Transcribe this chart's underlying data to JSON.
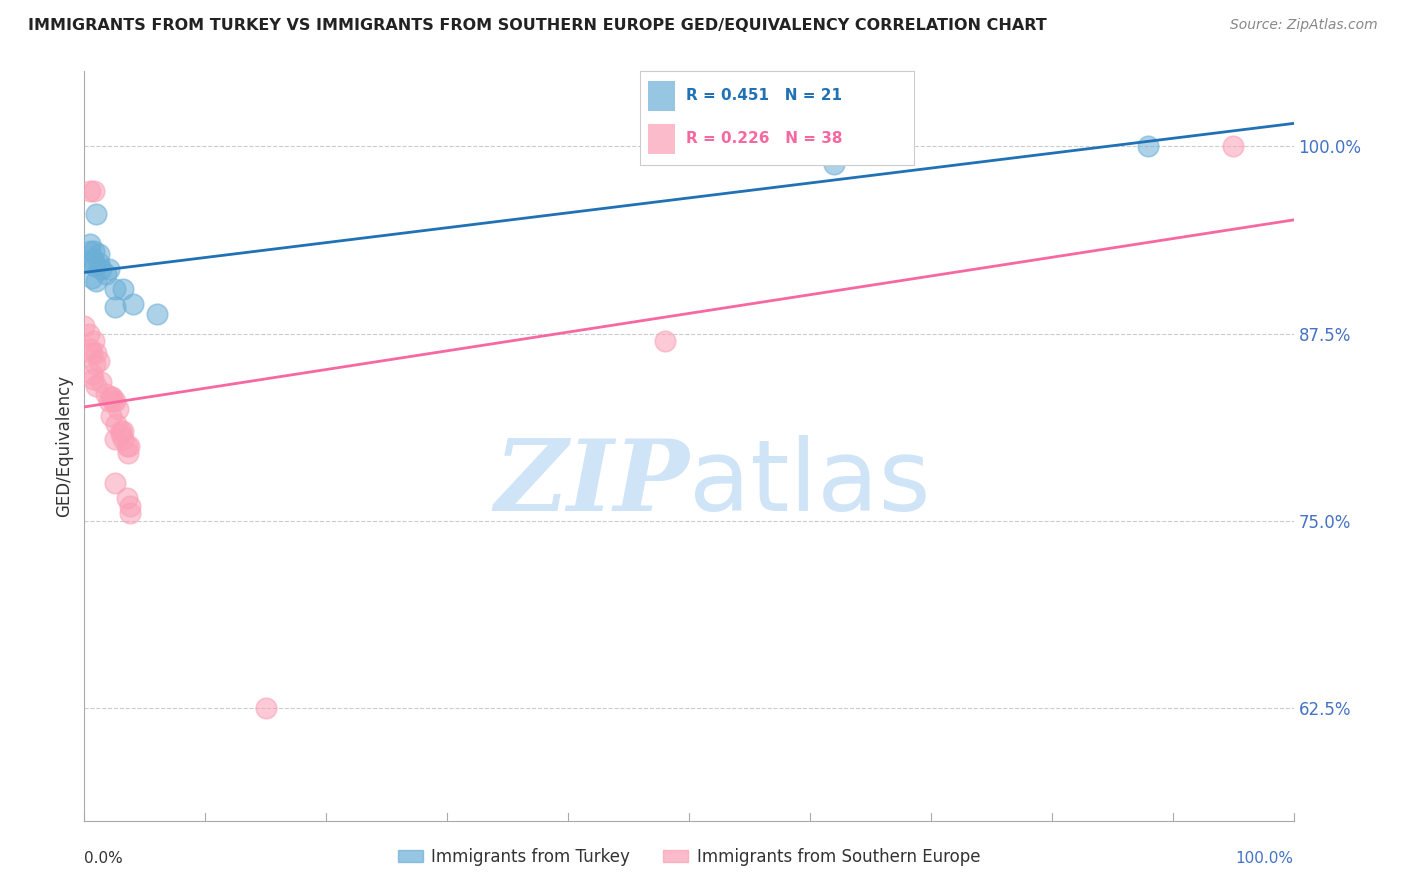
{
  "title": "IMMIGRANTS FROM TURKEY VS IMMIGRANTS FROM SOUTHERN EUROPE GED/EQUIVALENCY CORRELATION CHART",
  "source": "Source: ZipAtlas.com",
  "ylabel": "GED/Equivalency",
  "ytick_labels": [
    "100.0%",
    "87.5%",
    "75.0%",
    "62.5%"
  ],
  "ytick_values": [
    1.0,
    0.875,
    0.75,
    0.625
  ],
  "xlim": [
    0.0,
    1.0
  ],
  "ylim": [
    0.55,
    1.05
  ],
  "blue_label": "Immigrants from Turkey",
  "pink_label": "Immigrants from Southern Europe",
  "blue_R": "R = 0.451",
  "blue_N": "N = 21",
  "pink_R": "R = 0.226",
  "pink_N": "N = 38",
  "blue_color": "#6baed6",
  "pink_color": "#fa9fb5",
  "blue_line_color": "#2171b5",
  "pink_line_color": "#f768a1",
  "blue_points": [
    [
      0.01,
      0.955
    ],
    [
      0.005,
      0.935
    ],
    [
      0.005,
      0.93
    ],
    [
      0.008,
      0.93
    ],
    [
      0.012,
      0.928
    ],
    [
      0.007,
      0.925
    ],
    [
      0.006,
      0.922
    ],
    [
      0.012,
      0.922
    ],
    [
      0.009,
      0.92
    ],
    [
      0.014,
      0.918
    ],
    [
      0.02,
      0.918
    ],
    [
      0.018,
      0.915
    ],
    [
      0.006,
      0.912
    ],
    [
      0.01,
      0.91
    ],
    [
      0.025,
      0.905
    ],
    [
      0.032,
      0.905
    ],
    [
      0.04,
      0.895
    ],
    [
      0.025,
      0.893
    ],
    [
      0.06,
      0.888
    ],
    [
      0.62,
      0.988
    ],
    [
      0.88,
      1.0
    ]
  ],
  "pink_points": [
    [
      0.005,
      0.97
    ],
    [
      0.008,
      0.97
    ],
    [
      0.0,
      0.88
    ],
    [
      0.004,
      0.875
    ],
    [
      0.008,
      0.87
    ],
    [
      0.005,
      0.865
    ],
    [
      0.006,
      0.862
    ],
    [
      0.01,
      0.862
    ],
    [
      0.012,
      0.857
    ],
    [
      0.009,
      0.855
    ],
    [
      0.006,
      0.848
    ],
    [
      0.007,
      0.845
    ],
    [
      0.014,
      0.843
    ],
    [
      0.01,
      0.84
    ],
    [
      0.018,
      0.835
    ],
    [
      0.022,
      0.833
    ],
    [
      0.023,
      0.833
    ],
    [
      0.02,
      0.83
    ],
    [
      0.024,
      0.83
    ],
    [
      0.025,
      0.83
    ],
    [
      0.028,
      0.825
    ],
    [
      0.022,
      0.82
    ],
    [
      0.026,
      0.815
    ],
    [
      0.03,
      0.81
    ],
    [
      0.032,
      0.81
    ],
    [
      0.03,
      0.808
    ],
    [
      0.025,
      0.805
    ],
    [
      0.032,
      0.805
    ],
    [
      0.035,
      0.8
    ],
    [
      0.037,
      0.8
    ],
    [
      0.036,
      0.795
    ],
    [
      0.025,
      0.775
    ],
    [
      0.035,
      0.765
    ],
    [
      0.038,
      0.76
    ],
    [
      0.038,
      0.755
    ],
    [
      0.15,
      0.625
    ],
    [
      0.48,
      0.87
    ],
    [
      0.95,
      1.0
    ]
  ],
  "watermark_color": "#d0e4f7",
  "background_color": "#ffffff",
  "grid_color": "#cccccc",
  "legend_box_color": "#4472c4",
  "right_tick_color": "#4472c4"
}
